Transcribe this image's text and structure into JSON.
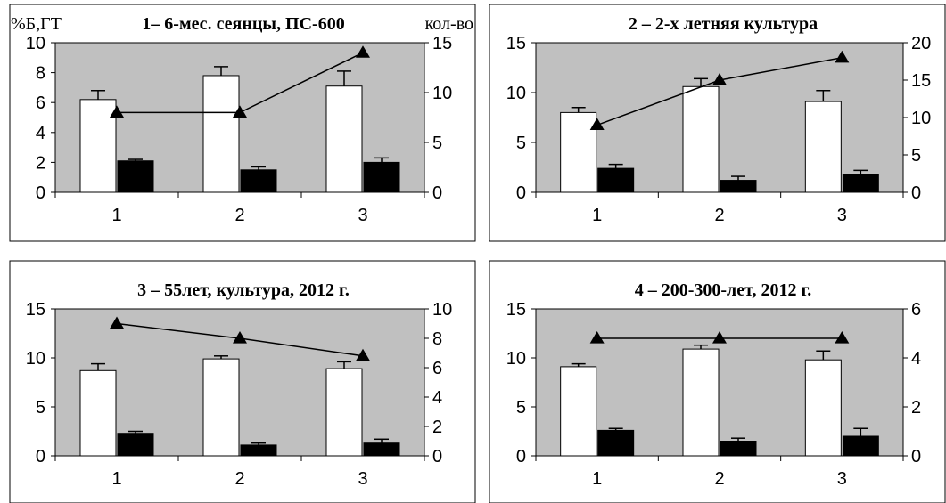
{
  "chart_data": [
    {
      "type": "bar",
      "title": "1– 6-мес. сеянцы, ПС-600",
      "corner_left_label": "%Б,ГТ",
      "corner_right_label": "кол-во",
      "categories": [
        "1",
        "2",
        "3"
      ],
      "ylim": [
        0,
        10
      ],
      "yticks": [
        "0",
        "2",
        "4",
        "6",
        "8",
        "10"
      ],
      "y2lim": [
        0,
        15
      ],
      "y2ticks": [
        "0",
        "5",
        "10",
        "15"
      ],
      "bars_white": [
        6.2,
        7.8,
        7.1
      ],
      "bars_white_err": [
        0.6,
        0.6,
        1.0
      ],
      "bars_black": [
        2.1,
        1.5,
        2.0
      ],
      "bars_black_err": [
        0.1,
        0.2,
        0.3
      ],
      "line": [
        8,
        8,
        14
      ]
    },
    {
      "type": "bar",
      "title": "2 – 2-х летняя культура",
      "corner_left_label": "",
      "corner_right_label": "",
      "categories": [
        "1",
        "2",
        "3"
      ],
      "ylim": [
        0,
        15
      ],
      "yticks": [
        "0",
        "5",
        "10",
        "15"
      ],
      "y2lim": [
        0,
        20
      ],
      "y2ticks": [
        "0",
        "5",
        "10",
        "15",
        "20"
      ],
      "bars_white": [
        8.0,
        10.6,
        9.1
      ],
      "bars_white_err": [
        0.5,
        0.8,
        1.1
      ],
      "bars_black": [
        2.4,
        1.2,
        1.8
      ],
      "bars_black_err": [
        0.4,
        0.4,
        0.4
      ],
      "line": [
        9,
        15,
        18
      ]
    },
    {
      "type": "bar",
      "title": "3 – 55лет, культура, 2012 г.",
      "corner_left_label": "",
      "corner_right_label": "",
      "categories": [
        "1",
        "2",
        "3"
      ],
      "ylim": [
        0,
        15
      ],
      "yticks": [
        "0",
        "5",
        "10",
        "15"
      ],
      "y2lim": [
        0,
        10
      ],
      "y2ticks": [
        "0",
        "2",
        "4",
        "6",
        "8",
        "10"
      ],
      "bars_white": [
        8.7,
        9.9,
        8.9
      ],
      "bars_white_err": [
        0.7,
        0.3,
        0.7
      ],
      "bars_black": [
        2.3,
        1.1,
        1.3
      ],
      "bars_black_err": [
        0.2,
        0.2,
        0.4
      ],
      "line": [
        9,
        8,
        6.8
      ]
    },
    {
      "type": "bar",
      "title": "4 – 200-300-лет, 2012 г.",
      "corner_left_label": "",
      "corner_right_label": "",
      "categories": [
        "1",
        "2",
        "3"
      ],
      "ylim": [
        0,
        15
      ],
      "yticks": [
        "0",
        "5",
        "10",
        "15"
      ],
      "y2lim": [
        0,
        6
      ],
      "y2ticks": [
        "0",
        "2",
        "4",
        "6"
      ],
      "bars_white": [
        9.1,
        10.9,
        9.8
      ],
      "bars_white_err": [
        0.3,
        0.4,
        0.9
      ],
      "bars_black": [
        2.6,
        1.5,
        2.0
      ],
      "bars_black_err": [
        0.2,
        0.3,
        0.8
      ],
      "line": [
        4.8,
        4.8,
        4.8
      ]
    }
  ]
}
